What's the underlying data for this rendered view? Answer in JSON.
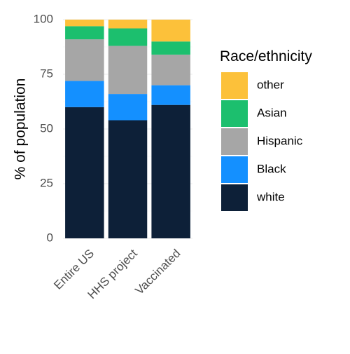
{
  "chart_data": {
    "type": "bar",
    "stacked": true,
    "title": "",
    "xlabel": "",
    "ylabel": "% of population",
    "ylim": [
      0,
      100
    ],
    "yticks": [
      0,
      25,
      50,
      75,
      100
    ],
    "grid": true,
    "categories": [
      "Entire US",
      "HHS project",
      "Vaccinated"
    ],
    "series": [
      {
        "name": "white",
        "color": "#0d2038",
        "values": [
          60,
          54,
          61
        ]
      },
      {
        "name": "Black",
        "color": "#1490ff",
        "values": [
          12,
          12,
          9
        ]
      },
      {
        "name": "Hispanic",
        "color": "#a6a6a6",
        "values": [
          19,
          22,
          14
        ]
      },
      {
        "name": "Asian",
        "color": "#1cbf6e",
        "values": [
          6,
          8,
          6
        ]
      },
      {
        "name": "other",
        "color": "#fcc13a",
        "values": [
          3,
          4,
          10
        ]
      }
    ],
    "legend": {
      "title": "Race/ethnicity",
      "placement": "right",
      "order": [
        "other",
        "Asian",
        "Hispanic",
        "Black",
        "white"
      ]
    }
  }
}
